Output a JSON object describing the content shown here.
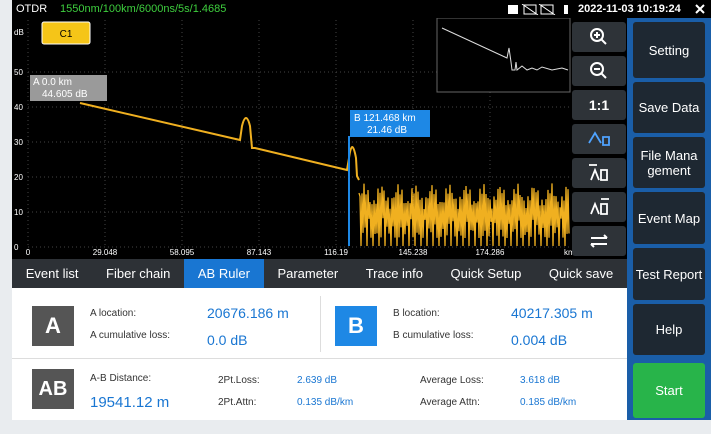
{
  "status_bar": {
    "app": "OTDR",
    "params": "1550nm/100km/6000ns/5s/1.4685",
    "datetime": "2022-11-03 10:19:24"
  },
  "trace": {
    "channel": "C1",
    "y_unit": "dB",
    "y_labels": [
      "50",
      "40",
      "30",
      "20",
      "10",
      "0"
    ],
    "x_labels": [
      "0",
      "29.048",
      "58.095",
      "87.143",
      "116.19",
      "145.238",
      "174.286"
    ],
    "x_unit": "km",
    "marker_a": {
      "position": "A 0.0 km",
      "level": "44.605 dB"
    },
    "marker_b": {
      "position": "B 121.468 km",
      "level": "21.46 dB"
    }
  },
  "tools": {
    "ratio": "1:1"
  },
  "tabs": [
    "Event list",
    "Fiber chain",
    "AB Ruler",
    "Parameter",
    "Trace info",
    "Quick Setup",
    "Quick save"
  ],
  "side_menu": [
    "Setting",
    "Save Data",
    "File Management",
    "Event Map",
    "Test Report",
    "Help",
    "Start"
  ],
  "ab_ruler": {
    "a": {
      "badge": "A",
      "location_label": "A location:",
      "location": "20676.186 m",
      "loss_label": "A cumulative loss:",
      "loss": "0.0 dB"
    },
    "b": {
      "badge": "B",
      "location_label": "B location:",
      "location": "40217.305 m",
      "loss_label": "B cumulative loss:",
      "loss": "0.004 dB"
    },
    "ab": {
      "badge": "AB",
      "distance_label": "A-B Distance:",
      "distance": "19541.12 m",
      "pt_loss_label": "2Pt.Loss:",
      "pt_loss": "2.639 dB",
      "pt_attn_label": "2Pt.Attn:",
      "pt_attn": "0.135 dB/km",
      "avg_loss_label": "Average Loss:",
      "avg_loss": "3.618 dB",
      "avg_attn_label": "Average Attn:",
      "avg_attn": "0.185 dB/km"
    }
  }
}
